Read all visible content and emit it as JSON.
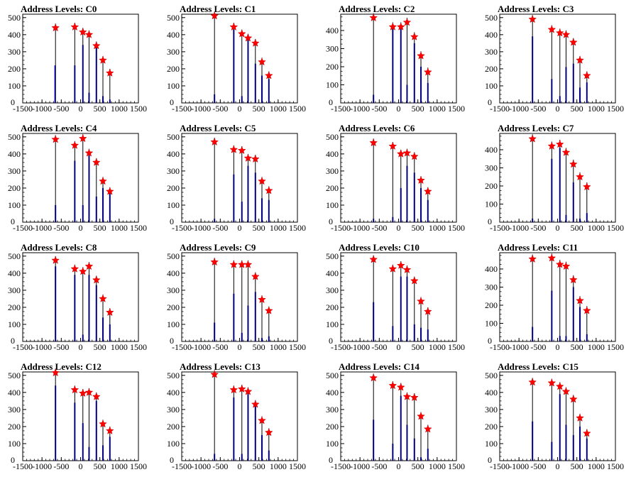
{
  "figure": {
    "background": "#ffffff"
  },
  "style": {
    "bar_color": "#0000ff",
    "peak_line_color": "#000000",
    "marker_color": "#ff0000",
    "marker_outline": "#cc0000"
  },
  "chart_data": [
    {
      "type": "bar",
      "title": "Address Levels: C0",
      "xlabel": "",
      "ylabel": "",
      "xlim": [
        -1500,
        1500
      ],
      "ylim": [
        0,
        520
      ],
      "x_ticks": [
        "-1500",
        "-1000",
        "-500",
        "0",
        "500",
        "1000",
        "1500"
      ],
      "y_ticks": [
        "100",
        "200",
        "300",
        "400",
        "500"
      ],
      "peak_x": [
        -650,
        -150,
        60,
        220,
        410,
        580,
        760
      ],
      "peak_y": [
        440,
        445,
        415,
        400,
        335,
        250,
        175
      ],
      "bars": [
        [
          -660,
          220
        ],
        [
          -150,
          220
        ],
        [
          60,
          340
        ],
        [
          220,
          60
        ],
        [
          410,
          340
        ],
        [
          580,
          40
        ],
        [
          760,
          20
        ]
      ],
      "grid": false
    },
    {
      "type": "bar",
      "title": "Address Levels: C1",
      "xlabel": "",
      "ylabel": "",
      "xlim": [
        -1500,
        1500
      ],
      "ylim": [
        0,
        520
      ],
      "x_ticks": [
        "-1500",
        "-1000",
        "-500",
        "0",
        "500",
        "1000",
        "1500"
      ],
      "y_ticks": [
        "100",
        "200",
        "300",
        "400",
        "500"
      ],
      "peak_x": [
        -650,
        -150,
        60,
        220,
        410,
        580,
        760
      ],
      "peak_y": [
        510,
        445,
        405,
        380,
        350,
        240,
        160
      ],
      "bars": [
        [
          -650,
          50
        ],
        [
          -150,
          430
        ],
        [
          60,
          40
        ],
        [
          220,
          400
        ],
        [
          410,
          230
        ],
        [
          580,
          160
        ],
        [
          760,
          140
        ]
      ],
      "grid": false
    },
    {
      "type": "bar",
      "title": "Address Levels: C2",
      "xlabel": "",
      "ylabel": "",
      "xlim": [
        -1500,
        1500
      ],
      "ylim": [
        0,
        490
      ],
      "x_ticks": [
        "-1500",
        "-1000",
        "-500",
        "0",
        "500",
        "1000",
        "1500"
      ],
      "y_ticks": [
        "100",
        "200",
        "300",
        "400"
      ],
      "peak_x": [
        -650,
        -150,
        60,
        220,
        410,
        580,
        760
      ],
      "peak_y": [
        470,
        420,
        420,
        445,
        365,
        260,
        170
      ],
      "bars": [
        [
          -650,
          45
        ],
        [
          -150,
          420
        ],
        [
          60,
          410
        ],
        [
          220,
          100
        ],
        [
          410,
          330
        ],
        [
          580,
          200
        ],
        [
          760,
          110
        ]
      ],
      "grid": false
    },
    {
      "type": "bar",
      "title": "Address Levels: C3",
      "xlabel": "",
      "ylabel": "",
      "xlim": [
        -1500,
        1500
      ],
      "ylim": [
        0,
        520
      ],
      "x_ticks": [
        "-1500",
        "-1000",
        "-500",
        "0",
        "500",
        "1000",
        "1500"
      ],
      "y_ticks": [
        "100",
        "200",
        "300",
        "400",
        "500"
      ],
      "peak_x": [
        -650,
        -150,
        60,
        220,
        410,
        580,
        760
      ],
      "peak_y": [
        490,
        430,
        410,
        400,
        355,
        250,
        160
      ],
      "bars": [
        [
          -650,
          390
        ],
        [
          -150,
          140
        ],
        [
          60,
          40
        ],
        [
          220,
          210
        ],
        [
          410,
          230
        ],
        [
          580,
          90
        ],
        [
          760,
          120
        ]
      ],
      "grid": false
    },
    {
      "type": "bar",
      "title": "Address Levels: C4",
      "xlabel": "",
      "ylabel": "",
      "xlim": [
        -1500,
        1500
      ],
      "ylim": [
        0,
        520
      ],
      "x_ticks": [
        "-1500",
        "-1000",
        "-500",
        "0",
        "500",
        "1000",
        "1500"
      ],
      "y_ticks": [
        "100",
        "200",
        "300",
        "400",
        "500"
      ],
      "peak_x": [
        -650,
        -150,
        60,
        220,
        410,
        580,
        760
      ],
      "peak_y": [
        485,
        450,
        490,
        405,
        350,
        240,
        180
      ],
      "bars": [
        [
          -650,
          100
        ],
        [
          -150,
          360
        ],
        [
          60,
          100
        ],
        [
          220,
          390
        ],
        [
          410,
          150
        ],
        [
          580,
          200
        ],
        [
          760,
          170
        ]
      ],
      "grid": false
    },
    {
      "type": "bar",
      "title": "Address Levels: C5",
      "xlabel": "",
      "ylabel": "",
      "xlim": [
        -1500,
        1500
      ],
      "ylim": [
        0,
        520
      ],
      "x_ticks": [
        "-1500",
        "-1000",
        "-500",
        "0",
        "500",
        "1000",
        "1500"
      ],
      "y_ticks": [
        "100",
        "200",
        "300",
        "400",
        "500"
      ],
      "peak_x": [
        -650,
        -150,
        60,
        220,
        410,
        580,
        760
      ],
      "peak_y": [
        470,
        425,
        420,
        375,
        370,
        240,
        185
      ],
      "bars": [
        [
          -650,
          20
        ],
        [
          -150,
          280
        ],
        [
          60,
          120
        ],
        [
          220,
          330
        ],
        [
          410,
          290
        ],
        [
          580,
          140
        ],
        [
          760,
          130
        ]
      ],
      "grid": false
    },
    {
      "type": "bar",
      "title": "Address Levels: C6",
      "xlabel": "",
      "ylabel": "",
      "xlim": [
        -1500,
        1500
      ],
      "ylim": [
        0,
        520
      ],
      "x_ticks": [
        "-1500",
        "-1000",
        "-500",
        "0",
        "500",
        "1000",
        "1500"
      ],
      "y_ticks": [
        "100",
        "200",
        "300",
        "400",
        "500"
      ],
      "peak_x": [
        -650,
        -150,
        60,
        220,
        410,
        580,
        760
      ],
      "peak_y": [
        465,
        445,
        400,
        405,
        385,
        245,
        180
      ],
      "bars": [
        [
          -650,
          20
        ],
        [
          -150,
          30
        ],
        [
          60,
          200
        ],
        [
          220,
          330
        ],
        [
          410,
          290
        ],
        [
          580,
          200
        ],
        [
          760,
          130
        ]
      ],
      "grid": false
    },
    {
      "type": "bar",
      "title": "Address Levels: C7",
      "xlabel": "",
      "ylabel": "",
      "xlim": [
        -1500,
        1500
      ],
      "ylim": [
        0,
        490
      ],
      "x_ticks": [
        "-1500",
        "-1000",
        "-500",
        "0",
        "500",
        "1000",
        "1500"
      ],
      "y_ticks": [
        "100",
        "200",
        "300",
        "400"
      ],
      "peak_x": [
        -650,
        -150,
        60,
        220,
        410,
        580,
        760
      ],
      "peak_y": [
        460,
        420,
        430,
        385,
        320,
        250,
        195
      ],
      "bars": [
        [
          -650,
          20
        ],
        [
          -150,
          350
        ],
        [
          60,
          410
        ],
        [
          220,
          40
        ],
        [
          410,
          220
        ],
        [
          580,
          20
        ],
        [
          760,
          50
        ]
      ],
      "grid": false
    },
    {
      "type": "bar",
      "title": "Address Levels: C8",
      "xlabel": "",
      "ylabel": "",
      "xlim": [
        -1500,
        1500
      ],
      "ylim": [
        0,
        520
      ],
      "x_ticks": [
        "-1500",
        "-1000",
        "-500",
        "0",
        "500",
        "1000",
        "1500"
      ],
      "y_ticks": [
        "100",
        "200",
        "300",
        "400",
        "500"
      ],
      "peak_x": [
        -650,
        -150,
        60,
        220,
        410,
        580,
        760
      ],
      "peak_y": [
        475,
        425,
        410,
        440,
        360,
        250,
        170
      ],
      "bars": [
        [
          -650,
          440
        ],
        [
          -150,
          390
        ],
        [
          60,
          40
        ],
        [
          220,
          390
        ],
        [
          410,
          330
        ],
        [
          580,
          140
        ],
        [
          760,
          100
        ]
      ],
      "grid": false
    },
    {
      "type": "bar",
      "title": "Address Levels: C9",
      "xlabel": "",
      "ylabel": "",
      "xlim": [
        -1500,
        1500
      ],
      "ylim": [
        0,
        520
      ],
      "x_ticks": [
        "-1500",
        "-1000",
        "-500",
        "0",
        "500",
        "1000",
        "1500"
      ],
      "y_ticks": [
        "100",
        "200",
        "300",
        "400",
        "500"
      ],
      "peak_x": [
        -650,
        -150,
        60,
        220,
        410,
        580,
        760
      ],
      "peak_y": [
        465,
        450,
        450,
        450,
        380,
        245,
        180
      ],
      "bars": [
        [
          -650,
          110
        ],
        [
          -150,
          280
        ],
        [
          60,
          50
        ],
        [
          220,
          210
        ],
        [
          410,
          290
        ],
        [
          580,
          20
        ],
        [
          760,
          30
        ]
      ],
      "grid": false
    },
    {
      "type": "bar",
      "title": "Address Levels: C10",
      "xlabel": "",
      "ylabel": "",
      "xlim": [
        -1500,
        1500
      ],
      "ylim": [
        0,
        520
      ],
      "x_ticks": [
        "-1500",
        "-1000",
        "-500",
        "0",
        "500",
        "1000",
        "1500"
      ],
      "y_ticks": [
        "100",
        "200",
        "300",
        "400",
        "500"
      ],
      "peak_x": [
        -650,
        -150,
        60,
        220,
        410,
        580,
        760
      ],
      "peak_y": [
        480,
        425,
        445,
        420,
        355,
        235,
        175
      ],
      "bars": [
        [
          -650,
          230
        ],
        [
          -150,
          90
        ],
        [
          60,
          380
        ],
        [
          220,
          380
        ],
        [
          410,
          100
        ],
        [
          580,
          80
        ],
        [
          760,
          70
        ]
      ],
      "grid": false
    },
    {
      "type": "bar",
      "title": "Address Levels: C11",
      "xlabel": "",
      "ylabel": "",
      "xlim": [
        -1500,
        1500
      ],
      "ylim": [
        0,
        490
      ],
      "x_ticks": [
        "-1500",
        "-1000",
        "-500",
        "0",
        "500",
        "1000",
        "1500"
      ],
      "y_ticks": [
        "100",
        "200",
        "300",
        "400"
      ],
      "peak_x": [
        -650,
        -150,
        60,
        220,
        410,
        580,
        760
      ],
      "peak_y": [
        455,
        460,
        425,
        415,
        340,
        225,
        170
      ],
      "bars": [
        [
          -650,
          80
        ],
        [
          -150,
          280
        ],
        [
          60,
          30
        ],
        [
          220,
          30
        ],
        [
          410,
          300
        ],
        [
          580,
          190
        ],
        [
          760,
          40
        ]
      ],
      "grid": false
    },
    {
      "type": "bar",
      "title": "Address Levels: C12",
      "xlabel": "",
      "ylabel": "",
      "xlim": [
        -1500,
        1500
      ],
      "ylim": [
        0,
        520
      ],
      "x_ticks": [
        "-1500",
        "-1000",
        "-500",
        "0",
        "500",
        "1000",
        "1500"
      ],
      "y_ticks": [
        "100",
        "200",
        "300",
        "400",
        "500"
      ],
      "peak_x": [
        -650,
        -150,
        60,
        220,
        410,
        580,
        760
      ],
      "peak_y": [
        515,
        415,
        395,
        400,
        375,
        215,
        175
      ],
      "bars": [
        [
          -650,
          440
        ],
        [
          -150,
          340
        ],
        [
          60,
          220
        ],
        [
          220,
          80
        ],
        [
          410,
          350
        ],
        [
          580,
          90
        ],
        [
          760,
          140
        ]
      ],
      "grid": false
    },
    {
      "type": "bar",
      "title": "Address Levels: C13",
      "xlabel": "",
      "ylabel": "",
      "xlim": [
        -1500,
        1500
      ],
      "ylim": [
        0,
        520
      ],
      "x_ticks": [
        "-1500",
        "-1000",
        "-500",
        "0",
        "500",
        "1000",
        "1500"
      ],
      "y_ticks": [
        "100",
        "200",
        "300",
        "400",
        "500"
      ],
      "peak_x": [
        -650,
        -150,
        60,
        220,
        410,
        580,
        760
      ],
      "peak_y": [
        505,
        415,
        420,
        405,
        330,
        235,
        165
      ],
      "bars": [
        [
          -650,
          40
        ],
        [
          -150,
          370
        ],
        [
          60,
          40
        ],
        [
          220,
          390
        ],
        [
          410,
          330
        ],
        [
          580,
          150
        ],
        [
          760,
          60
        ]
      ],
      "grid": false
    },
    {
      "type": "bar",
      "title": "Address Levels: C14",
      "xlabel": "",
      "ylabel": "",
      "xlim": [
        -1500,
        1500
      ],
      "ylim": [
        0,
        520
      ],
      "x_ticks": [
        "-1500",
        "-1000",
        "-500",
        "0",
        "500",
        "1000",
        "1500"
      ],
      "y_ticks": [
        "100",
        "200",
        "300",
        "400",
        "500"
      ],
      "peak_x": [
        -650,
        -150,
        60,
        220,
        410,
        580,
        760
      ],
      "peak_y": [
        485,
        440,
        430,
        375,
        370,
        260,
        185
      ],
      "bars": [
        [
          -650,
          240
        ],
        [
          -150,
          100
        ],
        [
          60,
          380
        ],
        [
          220,
          210
        ],
        [
          410,
          130
        ],
        [
          580,
          20
        ],
        [
          760,
          70
        ]
      ],
      "grid": false
    },
    {
      "type": "bar",
      "title": "Address Levels: C15",
      "xlabel": "",
      "ylabel": "",
      "xlim": [
        -1500,
        1500
      ],
      "ylim": [
        0,
        520
      ],
      "x_ticks": [
        "-1500",
        "-1000",
        "-500",
        "0",
        "500",
        "1000",
        "1500"
      ],
      "y_ticks": [
        "100",
        "200",
        "300",
        "400",
        "500"
      ],
      "peak_x": [
        -650,
        -150,
        60,
        220,
        410,
        580,
        760
      ],
      "peak_y": [
        460,
        455,
        435,
        405,
        360,
        250,
        160
      ],
      "bars": [
        [
          -650,
          230
        ],
        [
          -150,
          110
        ],
        [
          60,
          390
        ],
        [
          220,
          210
        ],
        [
          410,
          150
        ],
        [
          580,
          200
        ],
        [
          760,
          130
        ]
      ],
      "grid": false
    }
  ]
}
